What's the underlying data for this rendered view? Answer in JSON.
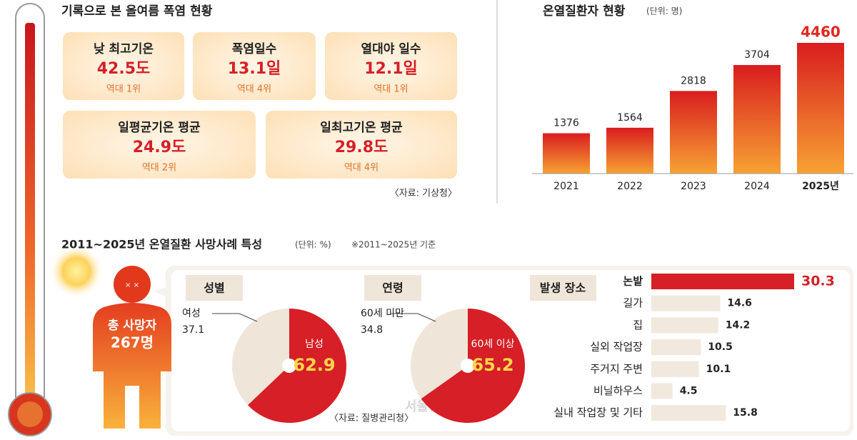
{
  "heat_stats": {
    "title": "기록으로 본 올여름 폭염 현황",
    "cards": [
      {
        "label": "낮 최고기온",
        "value": "42.5도",
        "rank": "역대 1위"
      },
      {
        "label": "폭염일수",
        "value": "13.1일",
        "rank": "역대 4위"
      },
      {
        "label": "열대야 일수",
        "value": "12.1일",
        "rank": "역대 1위"
      },
      {
        "label": "일평균기온 평균",
        "value": "24.9도",
        "rank": "역대 2위"
      },
      {
        "label": "일최고기온 평균",
        "value": "29.8도",
        "rank": "역대 4위"
      }
    ],
    "source": "〈자료: 기상청〉"
  },
  "chart_data": [
    {
      "type": "bar",
      "title": "온열질환자 현황",
      "subtitle": "(단위: 명)",
      "categories": [
        "2021",
        "2022",
        "2023",
        "2024",
        "2025년"
      ],
      "values": [
        1376,
        1564,
        2818,
        3704,
        4460
      ],
      "color": "#e3261f"
    },
    {
      "type": "pie",
      "title": "성별",
      "categories": [
        "여성",
        "남성"
      ],
      "values": [
        37.1,
        62.9
      ],
      "colors": [
        "#efe5d9",
        "#d61f26"
      ]
    },
    {
      "type": "pie",
      "title": "연령",
      "categories": [
        "60세 미만",
        "60세 이상"
      ],
      "values": [
        34.8,
        65.2
      ],
      "colors": [
        "#efe5d9",
        "#d61f26"
      ]
    },
    {
      "type": "hbar",
      "title": "발생 장소",
      "categories": [
        "논밭",
        "길가",
        "집",
        "실외 작업장",
        "주거지 주변",
        "비닐하우스",
        "실내 작업장 및 기타"
      ],
      "values": [
        30.3,
        14.6,
        14.2,
        10.5,
        10.1,
        4.5,
        15.8
      ],
      "colors": [
        "#d61f26",
        "#f1e8de",
        "#f1e8de",
        "#f1e8de",
        "#f1e8de",
        "#f1e8de",
        "#f1e8de"
      ]
    }
  ],
  "deaths": {
    "title": "2011~2025년 온열질환 사망사례 특성",
    "unit": "(단위: %)",
    "note": "※2011~2025년 기준",
    "total_label": "총 사망자",
    "total": "267명",
    "source": "〈자료: 질병관리청〉"
  },
  "watermark": "서울신문"
}
